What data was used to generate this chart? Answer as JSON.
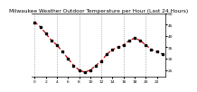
{
  "title": "Milwaukee Weather Outdoor Temperature per Hour (Last 24 Hours)",
  "hours": [
    0,
    1,
    2,
    3,
    4,
    5,
    6,
    7,
    8,
    9,
    10,
    11,
    12,
    13,
    14,
    15,
    16,
    17,
    18,
    19,
    20,
    21,
    22,
    23
  ],
  "temps": [
    46,
    44,
    41,
    38,
    36,
    33,
    30,
    27,
    25,
    24,
    25,
    27,
    29,
    32,
    34,
    35,
    36,
    38,
    39,
    38,
    36,
    34,
    33,
    32
  ],
  "line_color": "#cc0000",
  "marker_color": "#000000",
  "bg_color": "#ffffff",
  "plot_bg_color": "#ffffff",
  "grid_color": "#888888",
  "ylim": [
    22,
    50
  ],
  "ytick_labels": [
    "25",
    "30",
    "35",
    "40",
    "45",
    "50"
  ],
  "ytick_vals": [
    25,
    30,
    35,
    40,
    45,
    50
  ],
  "xlim": [
    -0.5,
    23.5
  ],
  "xtick_vals": [
    0,
    2,
    4,
    6,
    8,
    10,
    12,
    14,
    16,
    18,
    20,
    22
  ],
  "xtick_labels": [
    "0",
    "2",
    "4",
    "6",
    "8",
    "10",
    "12",
    "14",
    "16",
    "18",
    "20",
    "22"
  ],
  "grid_x_positions": [
    0,
    4,
    8,
    12,
    16,
    20
  ],
  "title_fontsize": 4.2,
  "tick_fontsize": 3.2,
  "line_width": 0.9,
  "marker_size": 1.5
}
